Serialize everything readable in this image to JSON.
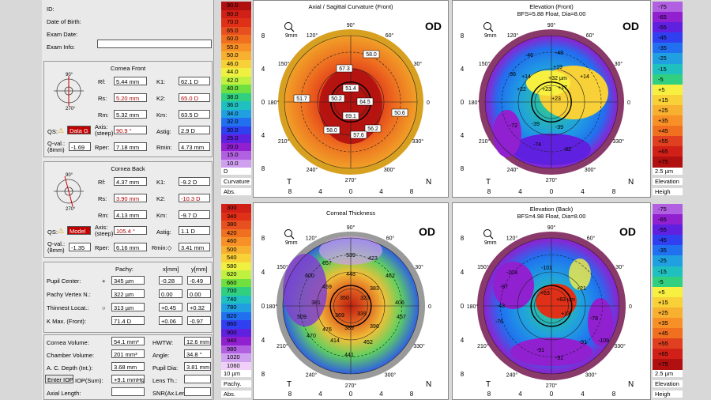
{
  "patient": {
    "id_label": "ID:",
    "dob_label": "Date of Birth:",
    "exam_date_label": "Exam Date:",
    "exam_info_label": "Exam Info:"
  },
  "cornea_front": {
    "title": "Cornea Front",
    "rf_label": "Rf:",
    "rf": "5.44 mm",
    "k1_label": "K1:",
    "k1": "62.1 D",
    "rs_label": "Rs:",
    "rs": "5.20 mm",
    "k2_label": "K2:",
    "k2": "65.0 D",
    "rm_label": "Rm:",
    "rm": "5.32 mm",
    "km_label": "Km:",
    "km": "63.5 D",
    "qs_label": "QS:",
    "qs_badge": "Data G",
    "axis_label": "Axis:\n(steep)",
    "axis": "90.9 °",
    "astig_label": "Astig:",
    "astig": "2.9 D",
    "qval_label": "Q-val.:\n(8mm)",
    "qval": "-1.69",
    "rper_label": "Rper:",
    "rper": "7.18 mm",
    "rmin_label": "Rmin:",
    "rmin": "4.73 mm"
  },
  "cornea_back": {
    "title": "Cornea Back",
    "rf_label": "Rf:",
    "rf": "4.37 mm",
    "k1_label": "K1:",
    "k1": "-9.2 D",
    "rs_label": "Rs:",
    "rs": "3.90 mm",
    "k2_label": "K2:",
    "k2": "-10.3 D",
    "rm_label": "Rm:",
    "rm": "4.13 mm",
    "km_label": "Km:",
    "km": "-9.7 D",
    "qs_label": "QS:",
    "qs_badge": "Model",
    "axis_label": "Axis:\n(steep)",
    "axis": "105.4 °",
    "astig_label": "Astig:",
    "astig": "1.1 D",
    "qval_label": "Q-val.:\n(8mm)",
    "qval": "-1.35",
    "rper_label": "Rper:",
    "rper": "6.16 mm",
    "rmin_label": "Rmin:◇",
    "rmin": "3.41 mm"
  },
  "pachy_table": {
    "head_pachy": "Pachy:",
    "head_x": "x[mm]",
    "head_y": "y[mm]",
    "rows": [
      {
        "label": "Pupil Center:",
        "sym": "+",
        "pachy": "345 µm",
        "x": "-0.28",
        "y": "-0.49"
      },
      {
        "label": "Pachy Vertex N.:",
        "sym": "",
        "pachy": "322 µm",
        "x": "0.00",
        "y": "0.00"
      },
      {
        "label": "Thinnest Locat.:",
        "sym": "○",
        "pachy": "313 µm",
        "x": "+0.45",
        "y": "+0.32"
      },
      {
        "label": "K Max. (Front):",
        "sym": "",
        "pachy": "71.4 D",
        "x": "+0.06",
        "y": "-0.97"
      }
    ]
  },
  "volumes": {
    "cornea_volume_label": "Cornea Volume:",
    "cornea_volume": "54.1 mm³",
    "hwtw_label": "HWTW:",
    "hwtw": "12.6 mm",
    "chamber_volume_label": "Chamber Volume:",
    "chamber_volume": "201 mm³",
    "angle_label": "Angle:",
    "angle": "34.8 °",
    "acd_label": "A. C. Depth (Int.):",
    "acd": "3.68 mm",
    "pupil_dia_label": "Pupil Dia:",
    "pupil_dia": "3.81 mm",
    "iop_btn": "Enter IOP",
    "iop_label": "IOP(Sum):",
    "iop": "+9.1 mmHg",
    "lens_label": "Lens Th.:",
    "lens": "",
    "axial_label": "Axial Length:",
    "axial": "",
    "snr_label": "SNR(Ax.Len",
    "snr": ""
  },
  "curv_scale": {
    "values": [
      "90.0",
      "80.0",
      "70.0",
      "65.0",
      "60.0",
      "55.0",
      "50.0",
      "46.0",
      "44.0",
      "42.0",
      "40.0",
      "38.0",
      "36.0",
      "34.0",
      "32.0",
      "30.0",
      "25.0",
      "20.0",
      "15.0",
      "10.0"
    ],
    "colors": [
      "#b01010",
      "#d02018",
      "#e03018",
      "#e85020",
      "#f07020",
      "#f89028",
      "#f8b030",
      "#f8d038",
      "#f0f040",
      "#c0f040",
      "#70e040",
      "#30d080",
      "#20c0c0",
      "#20a0e0",
      "#2070f0",
      "#3040f0",
      "#6020e0",
      "#9020d0",
      "#b060e0",
      "#d0a0f0"
    ],
    "unit": "D",
    "name": "Curvature",
    "type": "Abs."
  },
  "pachy_scale": {
    "values": [
      "300",
      "340",
      "380",
      "420",
      "460",
      "500",
      "540",
      "580",
      "620",
      "660",
      "700",
      "740",
      "780",
      "820",
      "860",
      "900",
      "940",
      "980",
      "1020",
      "1060"
    ],
    "colors": [
      "#d02018",
      "#e03018",
      "#e85020",
      "#f07020",
      "#f89028",
      "#f8b030",
      "#f8d038",
      "#f0f040",
      "#c0f040",
      "#70e040",
      "#30d080",
      "#20c0c0",
      "#20a0e0",
      "#2070f0",
      "#3040f0",
      "#6020e0",
      "#9020d0",
      "#b060e0",
      "#d0a0f0",
      "#f0d0f8"
    ],
    "unit": "10 µm",
    "name": "Pachy.",
    "type": "Abs."
  },
  "elev_scale": {
    "values": [
      "-75",
      "-65",
      "-55",
      "-45",
      "-35",
      "-25",
      "-15",
      "-5",
      "+5",
      "+15",
      "+25",
      "+35",
      "+45",
      "+55",
      "+65",
      "+75"
    ],
    "colors": [
      "#b060e0",
      "#9020d0",
      "#6020e0",
      "#3040f0",
      "#2070f0",
      "#20a0e0",
      "#20c0c0",
      "#30d080",
      "#f8f040",
      "#f8d038",
      "#f8b030",
      "#f89028",
      "#f07020",
      "#e04020",
      "#d02018",
      "#b01010"
    ],
    "unit": "2.5 µm",
    "name": "Elevation",
    "type": "Heigh"
  },
  "maps": {
    "axial": {
      "title": "Axial / Sagittal Curvature (Front)",
      "od": "OD",
      "zoom": "9mm",
      "labels": [
        "58.0",
        "67.3",
        "51.4",
        "51.7",
        "50.2",
        "64.5",
        "69.1",
        "50.6",
        "58.0",
        "56.2",
        "57.6"
      ]
    },
    "elev_front": {
      "title": "Elevation (Front)",
      "subtitle": "BFS=5.88 Float, Dia=8.00",
      "od": "OD",
      "zoom": "9mm",
      "labels": [
        "-46",
        "-48",
        "-36",
        "+19",
        "+14",
        "+32 µm",
        "+14",
        "+22",
        "+23",
        "+17",
        "+23",
        "-39",
        "-72",
        "-39",
        "-74",
        "-82"
      ]
    },
    "thickness": {
      "title": "Corneal Thickness",
      "od": "OD",
      "zoom": "9mm",
      "labels": [
        "539",
        "423",
        "657",
        "448",
        "462",
        "600",
        "459",
        "383",
        "350",
        "323",
        "381",
        "406",
        "509",
        "339",
        "457",
        "369",
        "396",
        "476",
        "389",
        "470",
        "414",
        "452",
        "441"
      ]
    },
    "elev_back": {
      "title": "Elevation (Back)",
      "subtitle": "BFS=4.98 Float, Dia=8.00",
      "od": "OD",
      "zoom": "9mm",
      "labels": [
        "-204",
        "-101",
        "-97",
        "+63",
        "+21",
        "+83 µm",
        "+13",
        "-43",
        "-76",
        "-78",
        "-91",
        "-109",
        "-91",
        "-91"
      ]
    }
  },
  "axes": {
    "deg90": "90°",
    "deg270": "270°",
    "deg180": "180°",
    "deg0": "0",
    "deg120": "120°",
    "deg60": "60°",
    "deg150": "150°",
    "deg30": "30°",
    "deg210": "210°",
    "deg330": "330°",
    "deg240": "240°",
    "deg300": "300°",
    "left": "T",
    "right": "N",
    "ticks": [
      "8",
      "4",
      "0",
      "4",
      "8"
    ],
    "vticks": [
      "8",
      "4",
      "0",
      "4",
      "8"
    ]
  }
}
